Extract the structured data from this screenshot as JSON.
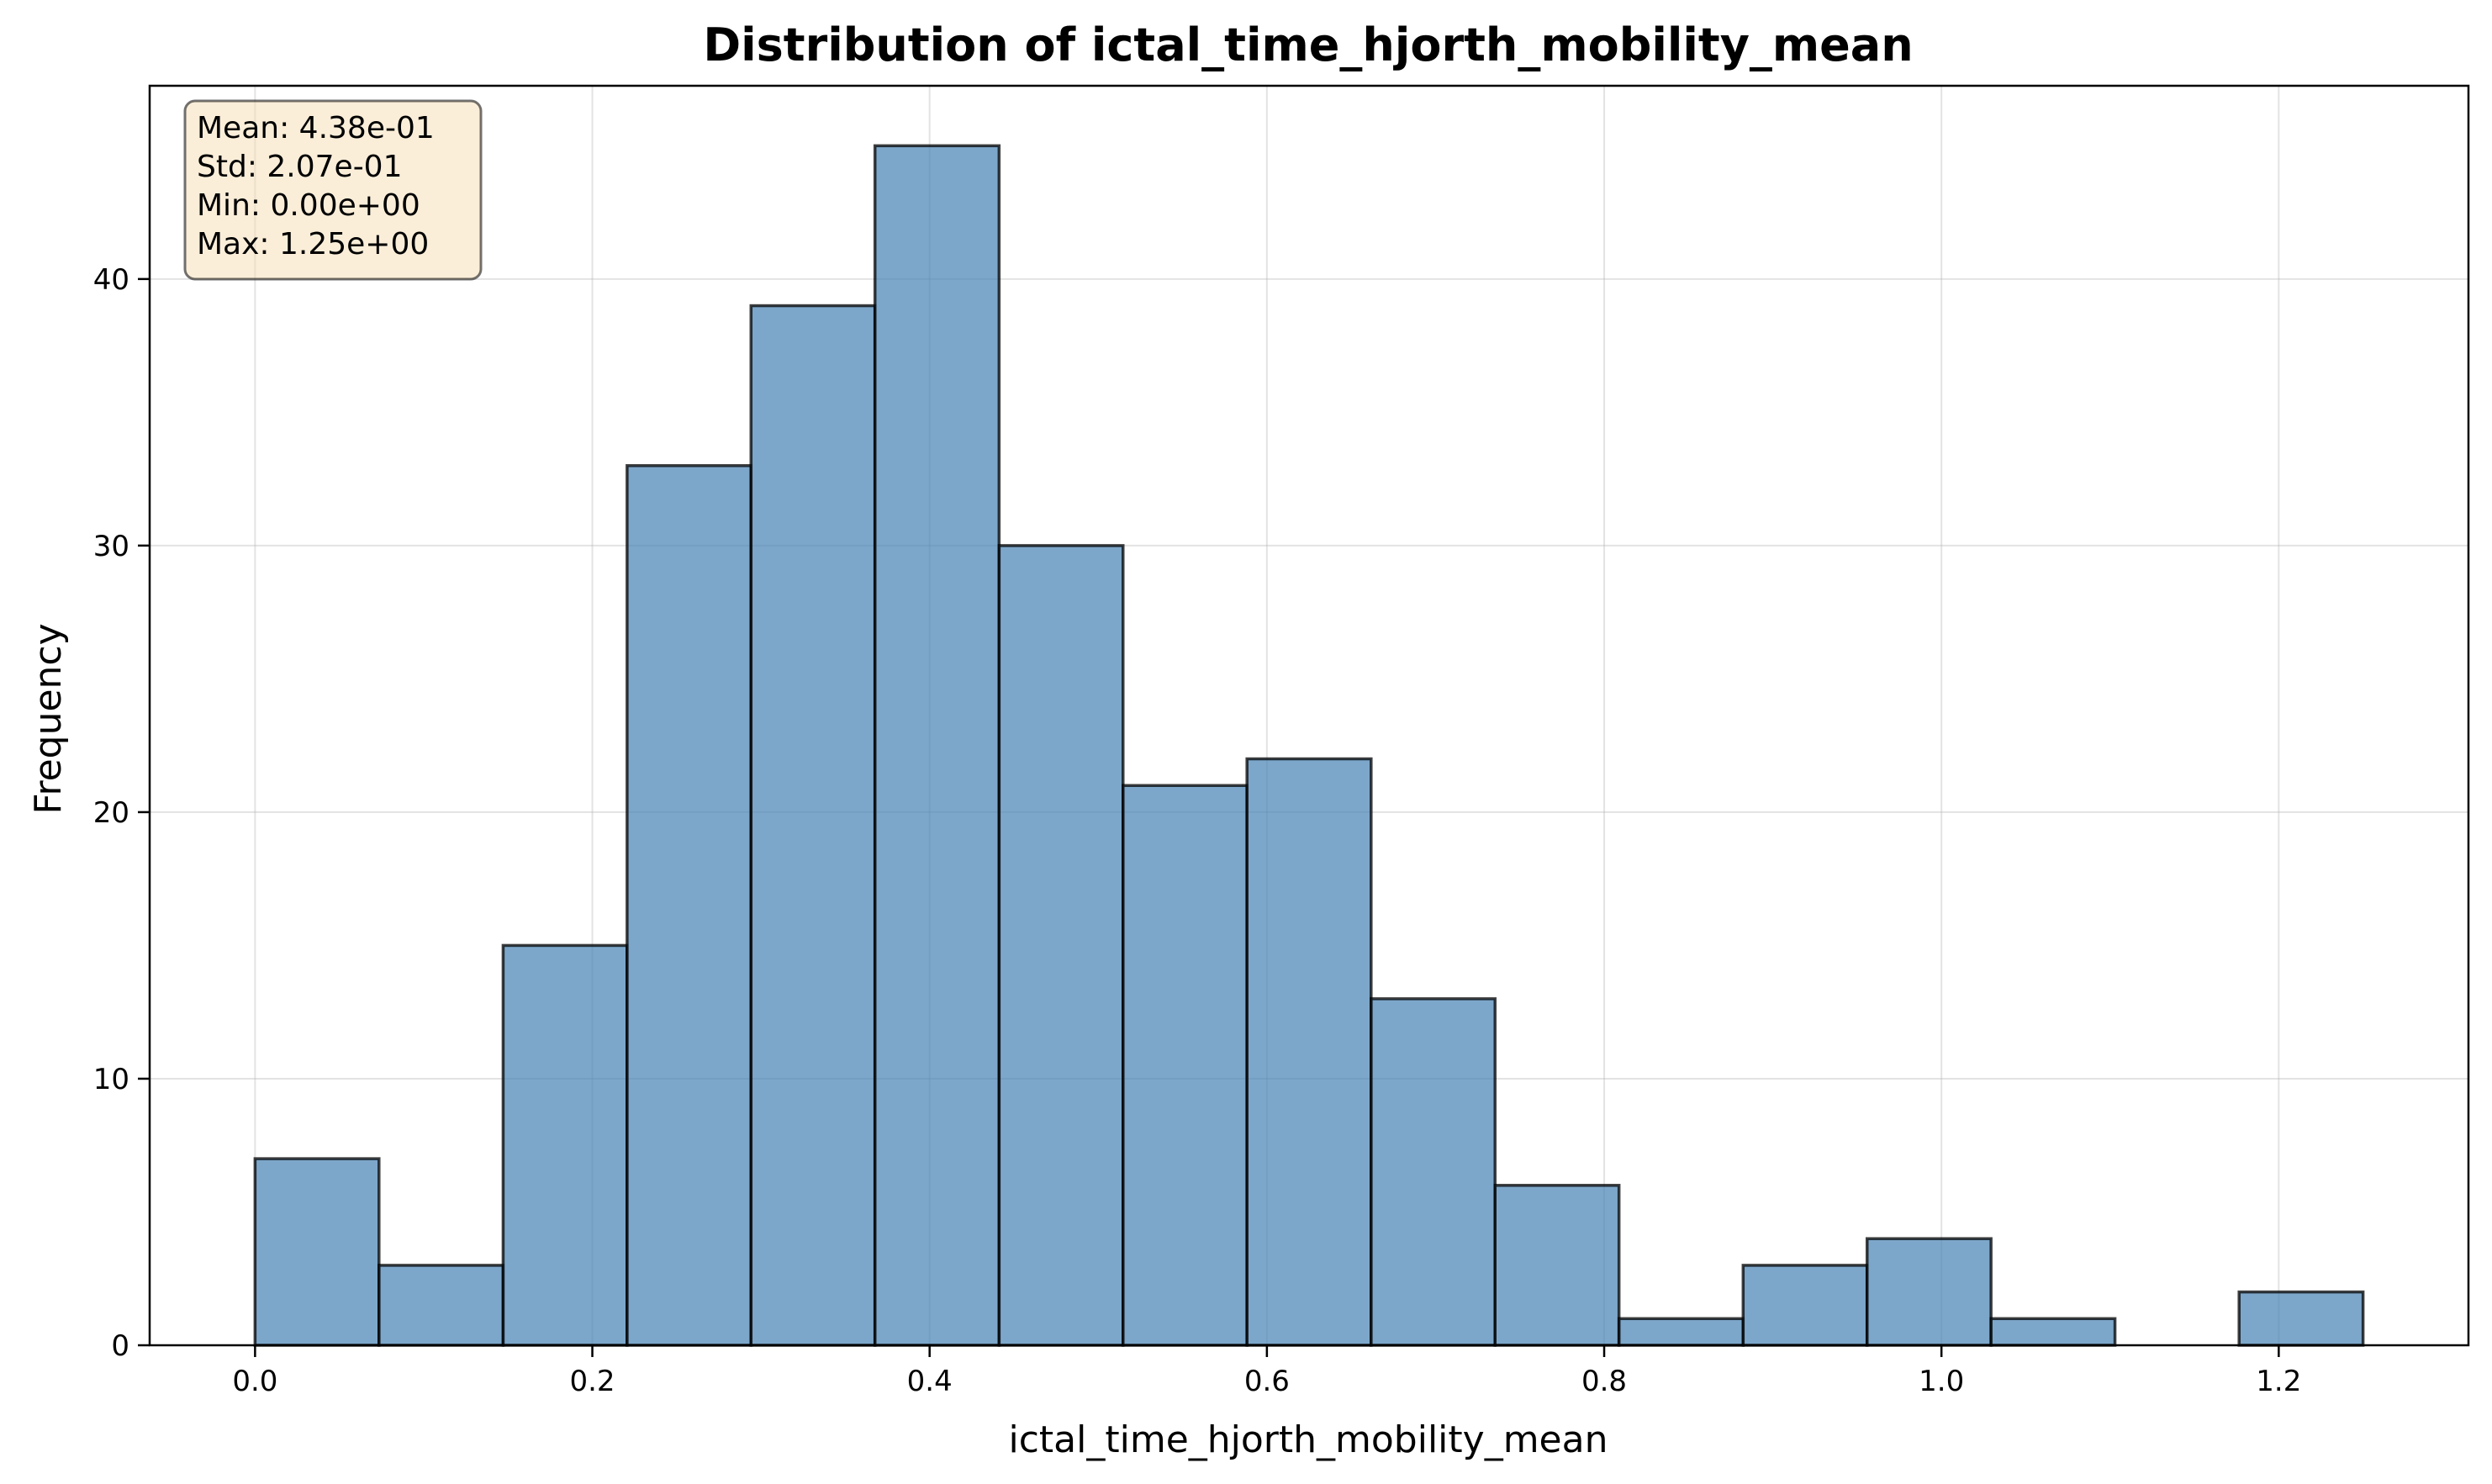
{
  "chart_data": {
    "type": "bar",
    "title": "Distribution of ictal_time_hjorth_mobility_mean",
    "xlabel": "ictal_time_hjorth_mobility_mean",
    "ylabel": "Frequency",
    "xlim": [
      -0.0625,
      1.3125
    ],
    "ylim": [
      0,
      47.25
    ],
    "xticks": [
      0.0,
      0.2,
      0.4,
      0.6,
      0.8,
      1.0,
      1.2
    ],
    "yticks": [
      0,
      10,
      20,
      30,
      40
    ],
    "grid": true,
    "bin_edges": [
      0.0,
      0.0735,
      0.1471,
      0.2206,
      0.2941,
      0.3676,
      0.4412,
      0.5147,
      0.5882,
      0.6618,
      0.7353,
      0.8088,
      0.8824,
      0.9559,
      1.0294,
      1.1029,
      1.1765,
      1.25
    ],
    "values": [
      7,
      3,
      15,
      33,
      39,
      45,
      30,
      21,
      22,
      13,
      6,
      1,
      3,
      4,
      1,
      0,
      2
    ],
    "colors": {
      "bar_fill": "#4682b4",
      "bar_edge": "#000000",
      "stats_box_fill": "#f5deb3"
    },
    "stats_box": {
      "position": "top-left",
      "lines": [
        "Mean: 4.38e-01",
        "Std: 2.07e-01",
        "Min: 0.00e+00",
        "Max: 1.25e+00"
      ]
    }
  }
}
